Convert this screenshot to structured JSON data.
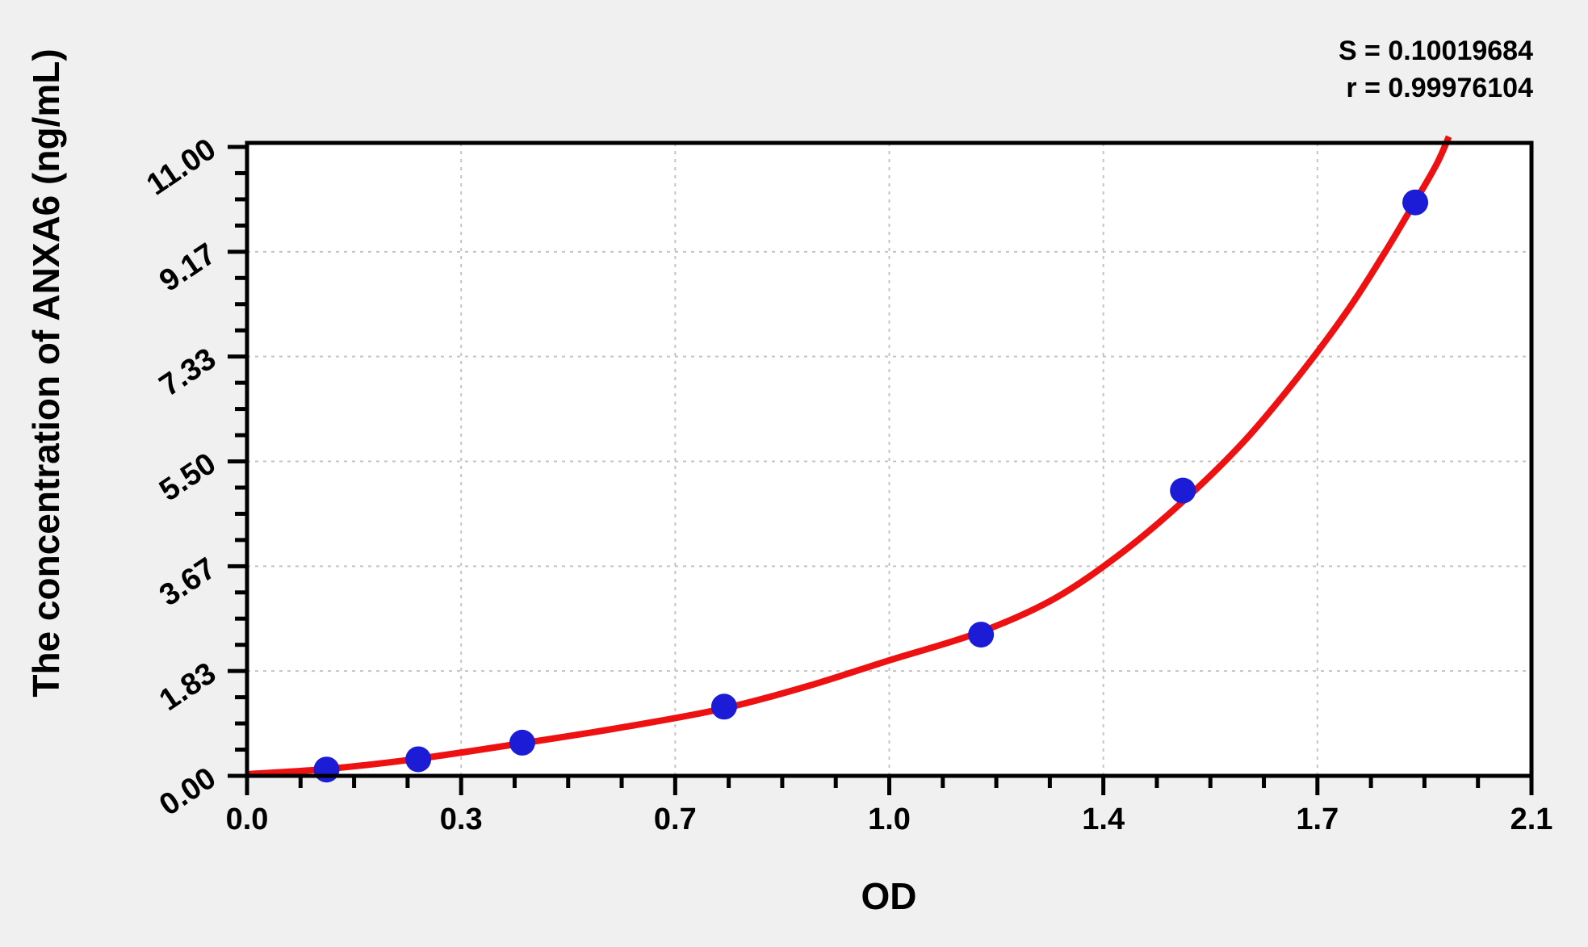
{
  "chart_data": {
    "type": "scatter",
    "title": "",
    "xlabel": "OD",
    "ylabel": "The concentration of ANXA6 (ng/mL)",
    "annotations": {
      "s": "S = 0.10019684",
      "r": "r = 0.99976104"
    },
    "xlim": [
      0,
      2.1
    ],
    "ylim": [
      0,
      11.07
    ],
    "x_ticks": {
      "values": [
        0,
        0.35,
        0.7,
        1.05,
        1.4,
        1.75,
        2.1
      ],
      "labels": [
        "0.0",
        "0.3",
        "0.7",
        "1.0",
        "1.4",
        "1.7",
        "2.1"
      ],
      "minor_divisions": 4
    },
    "y_ticks": {
      "values": [
        0,
        1.8333,
        3.6667,
        5.5,
        7.3333,
        9.1667,
        11
      ],
      "labels": [
        "0.00",
        "1.83",
        "3.67",
        "5.50",
        "7.33",
        "9.17",
        "11.00"
      ],
      "minor_divisions": 4
    },
    "grid": {
      "show": true,
      "style": "dashed",
      "position": "interior-major-ticks"
    },
    "legend": {
      "show": false
    },
    "series": [
      {
        "name": "standard-points",
        "type": "scatter",
        "color": "#1c1cd6",
        "marker_radius": 16,
        "points": [
          {
            "od": 0.13,
            "conc": 0.11
          },
          {
            "od": 0.28,
            "conc": 0.29
          },
          {
            "od": 0.45,
            "conc": 0.58
          },
          {
            "od": 0.78,
            "conc": 1.21
          },
          {
            "od": 1.2,
            "conc": 2.47
          },
          {
            "od": 1.53,
            "conc": 4.99
          },
          {
            "od": 1.91,
            "conc": 10.03
          }
        ]
      },
      {
        "name": "fitted-curve",
        "type": "line",
        "color": "#ee1111",
        "stroke_width": 8,
        "points": [
          [
            0.0,
            0.03
          ],
          [
            0.13,
            0.12
          ],
          [
            0.28,
            0.3
          ],
          [
            0.45,
            0.57
          ],
          [
            0.62,
            0.86
          ],
          [
            0.78,
            1.18
          ],
          [
            0.92,
            1.58
          ],
          [
            1.05,
            2.02
          ],
          [
            1.2,
            2.52
          ],
          [
            1.32,
            3.1
          ],
          [
            1.43,
            3.9
          ],
          [
            1.53,
            4.8
          ],
          [
            1.63,
            5.85
          ],
          [
            1.72,
            7.0
          ],
          [
            1.8,
            8.15
          ],
          [
            1.86,
            9.15
          ],
          [
            1.91,
            10.05
          ],
          [
            1.945,
            10.7
          ],
          [
            1.965,
            11.18
          ]
        ]
      }
    ],
    "colors": {
      "plot_bg": "#ffffff",
      "page_bg": "#f0f0f0",
      "axis": "#000000",
      "grid": "#c4c4c4",
      "text": "#000000"
    }
  }
}
